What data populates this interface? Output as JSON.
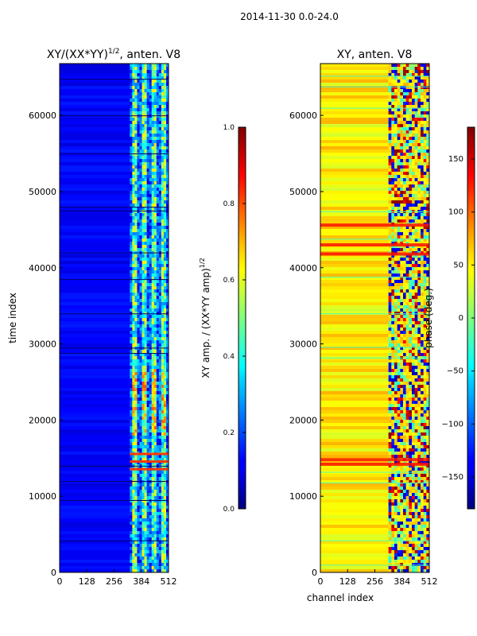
{
  "figure_title": "2014-11-30 0.0-24.0",
  "chart_data": [
    {
      "type": "heatmap",
      "title_main": "XY/(XX*YY)",
      "title_exp": "1/2",
      "title_suffix": ", anten. V8",
      "xlabel": "",
      "ylabel": "time index",
      "xlim": [
        0,
        512
      ],
      "ylim": [
        0,
        66800
      ],
      "xticks": [
        0,
        128,
        256,
        384,
        512
      ],
      "yticks": [
        0,
        10000,
        20000,
        30000,
        40000,
        50000,
        60000
      ],
      "colormap": "jet",
      "colorbar": {
        "label_main": "XY amp. / (XX*YY amp)",
        "label_exp": "1/2",
        "range": [
          0.0,
          1.0
        ],
        "ticks": [
          "0.0",
          "0.2",
          "0.4",
          "0.6",
          "0.8",
          "1.0"
        ]
      },
      "background_level": 0.12,
      "active_band": [
        330,
        512
      ],
      "bright_rows": [
        13500,
        14500,
        15500
      ],
      "dark_rows": [
        4200,
        9500,
        12000,
        14000,
        28800,
        29500,
        34000,
        38500,
        42000,
        47500,
        48000,
        55000,
        60000,
        64800
      ]
    },
    {
      "type": "heatmap",
      "title_main": "XY, anten. V8",
      "xlabel": "channel index",
      "ylabel": "",
      "xlim": [
        0,
        512
      ],
      "ylim": [
        0,
        66800
      ],
      "xticks": [
        0,
        128,
        256,
        384,
        512
      ],
      "yticks": [
        0,
        10000,
        20000,
        30000,
        40000,
        50000,
        60000
      ],
      "colormap": "jet",
      "colorbar": {
        "label": "phase (deg.)",
        "range": [
          -180,
          180
        ],
        "ticks": [
          "−150",
          "−100",
          "−50",
          "0",
          "50",
          "100",
          "150"
        ]
      },
      "background_phase_deg": 50,
      "noisy_band": [
        320,
        512
      ],
      "red_rows": [
        14200,
        14800,
        41800,
        43000,
        45600
      ],
      "line_rows": [
        1000,
        4200,
        11800,
        13200,
        28200,
        29600,
        34000,
        38800,
        43800,
        47400,
        61000,
        63800,
        65200
      ]
    }
  ]
}
